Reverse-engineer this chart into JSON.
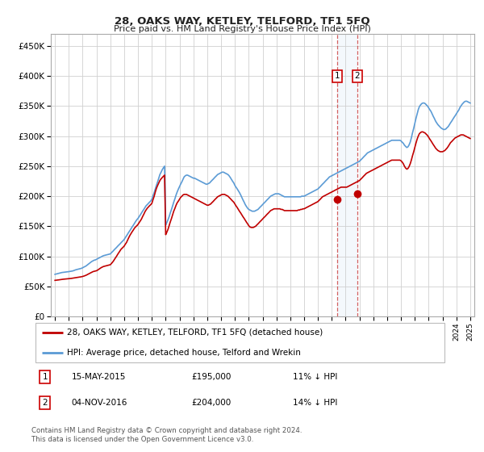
{
  "title": "28, OAKS WAY, KETLEY, TELFORD, TF1 5FQ",
  "subtitle": "Price paid vs. HM Land Registry's House Price Index (HPI)",
  "ylabel_ticks": [
    "£0",
    "£50K",
    "£100K",
    "£150K",
    "£200K",
    "£250K",
    "£300K",
    "£350K",
    "£400K",
    "£450K"
  ],
  "ytick_values": [
    0,
    50000,
    100000,
    150000,
    200000,
    250000,
    300000,
    350000,
    400000,
    450000
  ],
  "ylim": [
    0,
    470000
  ],
  "xlim_start": 1994.7,
  "xlim_end": 2025.3,
  "hpi_color": "#5b9bd5",
  "price_color": "#c00000",
  "bg_color": "#ffffff",
  "grid_color": "#d0d0d0",
  "legend_label_red": "28, OAKS WAY, KETLEY, TELFORD, TF1 5FQ (detached house)",
  "legend_label_blue": "HPI: Average price, detached house, Telford and Wrekin",
  "transaction1_date": "15-MAY-2015",
  "transaction1_price": "£195,000",
  "transaction1_hpi": "11% ↓ HPI",
  "transaction1_year": 2015.37,
  "transaction1_value": 195000,
  "transaction2_date": "04-NOV-2016",
  "transaction2_price": "£204,000",
  "transaction2_hpi": "14% ↓ HPI",
  "transaction2_year": 2016.84,
  "transaction2_value": 204000,
  "footer": "Contains HM Land Registry data © Crown copyright and database right 2024.\nThis data is licensed under the Open Government Licence v3.0.",
  "hpi_data_years": [
    1995.0,
    1995.08,
    1995.17,
    1995.25,
    1995.33,
    1995.42,
    1995.5,
    1995.58,
    1995.67,
    1995.75,
    1995.83,
    1995.92,
    1996.0,
    1996.08,
    1996.17,
    1996.25,
    1996.33,
    1996.42,
    1996.5,
    1996.58,
    1996.67,
    1996.75,
    1996.83,
    1996.92,
    1997.0,
    1997.08,
    1997.17,
    1997.25,
    1997.33,
    1997.42,
    1997.5,
    1997.58,
    1997.67,
    1997.75,
    1997.83,
    1997.92,
    1998.0,
    1998.08,
    1998.17,
    1998.25,
    1998.33,
    1998.42,
    1998.5,
    1998.58,
    1998.67,
    1998.75,
    1998.83,
    1998.92,
    1999.0,
    1999.08,
    1999.17,
    1999.25,
    1999.33,
    1999.42,
    1999.5,
    1999.58,
    1999.67,
    1999.75,
    1999.83,
    1999.92,
    2000.0,
    2000.08,
    2000.17,
    2000.25,
    2000.33,
    2000.42,
    2000.5,
    2000.58,
    2000.67,
    2000.75,
    2000.83,
    2000.92,
    2001.0,
    2001.08,
    2001.17,
    2001.25,
    2001.33,
    2001.42,
    2001.5,
    2001.58,
    2001.67,
    2001.75,
    2001.83,
    2001.92,
    2002.0,
    2002.08,
    2002.17,
    2002.25,
    2002.33,
    2002.42,
    2002.5,
    2002.58,
    2002.67,
    2002.75,
    2002.83,
    2002.92,
    2003.0,
    2003.08,
    2003.17,
    2003.25,
    2003.33,
    2003.42,
    2003.5,
    2003.58,
    2003.67,
    2003.75,
    2003.83,
    2003.92,
    2004.0,
    2004.08,
    2004.17,
    2004.25,
    2004.33,
    2004.42,
    2004.5,
    2004.58,
    2004.67,
    2004.75,
    2004.83,
    2004.92,
    2005.0,
    2005.08,
    2005.17,
    2005.25,
    2005.33,
    2005.42,
    2005.5,
    2005.58,
    2005.67,
    2005.75,
    2005.83,
    2005.92,
    2006.0,
    2006.08,
    2006.17,
    2006.25,
    2006.33,
    2006.42,
    2006.5,
    2006.58,
    2006.67,
    2006.75,
    2006.83,
    2006.92,
    2007.0,
    2007.08,
    2007.17,
    2007.25,
    2007.33,
    2007.42,
    2007.5,
    2007.58,
    2007.67,
    2007.75,
    2007.83,
    2007.92,
    2008.0,
    2008.08,
    2008.17,
    2008.25,
    2008.33,
    2008.42,
    2008.5,
    2008.58,
    2008.67,
    2008.75,
    2008.83,
    2008.92,
    2009.0,
    2009.08,
    2009.17,
    2009.25,
    2009.33,
    2009.42,
    2009.5,
    2009.58,
    2009.67,
    2009.75,
    2009.83,
    2009.92,
    2010.0,
    2010.08,
    2010.17,
    2010.25,
    2010.33,
    2010.42,
    2010.5,
    2010.58,
    2010.67,
    2010.75,
    2010.83,
    2010.92,
    2011.0,
    2011.08,
    2011.17,
    2011.25,
    2011.33,
    2011.42,
    2011.5,
    2011.58,
    2011.67,
    2011.75,
    2011.83,
    2011.92,
    2012.0,
    2012.08,
    2012.17,
    2012.25,
    2012.33,
    2012.42,
    2012.5,
    2012.58,
    2012.67,
    2012.75,
    2012.83,
    2012.92,
    2013.0,
    2013.08,
    2013.17,
    2013.25,
    2013.33,
    2013.42,
    2013.5,
    2013.58,
    2013.67,
    2013.75,
    2013.83,
    2013.92,
    2014.0,
    2014.08,
    2014.17,
    2014.25,
    2014.33,
    2014.42,
    2014.5,
    2014.58,
    2014.67,
    2014.75,
    2014.83,
    2014.92,
    2015.0,
    2015.08,
    2015.17,
    2015.25,
    2015.33,
    2015.42,
    2015.5,
    2015.58,
    2015.67,
    2015.75,
    2015.83,
    2015.92,
    2016.0,
    2016.08,
    2016.17,
    2016.25,
    2016.33,
    2016.42,
    2016.5,
    2016.58,
    2016.67,
    2016.75,
    2016.83,
    2016.92,
    2017.0,
    2017.08,
    2017.17,
    2017.25,
    2017.33,
    2017.42,
    2017.5,
    2017.58,
    2017.67,
    2017.75,
    2017.83,
    2017.92,
    2018.0,
    2018.08,
    2018.17,
    2018.25,
    2018.33,
    2018.42,
    2018.5,
    2018.58,
    2018.67,
    2018.75,
    2018.83,
    2018.92,
    2019.0,
    2019.08,
    2019.17,
    2019.25,
    2019.33,
    2019.42,
    2019.5,
    2019.58,
    2019.67,
    2019.75,
    2019.83,
    2019.92,
    2020.0,
    2020.08,
    2020.17,
    2020.25,
    2020.33,
    2020.42,
    2020.5,
    2020.58,
    2020.67,
    2020.75,
    2020.83,
    2020.92,
    2021.0,
    2021.08,
    2021.17,
    2021.25,
    2021.33,
    2021.42,
    2021.5,
    2021.58,
    2021.67,
    2021.75,
    2021.83,
    2021.92,
    2022.0,
    2022.08,
    2022.17,
    2022.25,
    2022.33,
    2022.42,
    2022.5,
    2022.58,
    2022.67,
    2022.75,
    2022.83,
    2022.92,
    2023.0,
    2023.08,
    2023.17,
    2023.25,
    2023.33,
    2023.42,
    2023.5,
    2023.58,
    2023.67,
    2023.75,
    2023.83,
    2023.92,
    2024.0,
    2024.08,
    2024.17,
    2024.25,
    2024.33,
    2024.42,
    2024.5,
    2024.58,
    2024.67,
    2024.75,
    2024.83,
    2024.92,
    2025.0
  ],
  "hpi_data_values": [
    70000,
    70500,
    71000,
    71500,
    72000,
    72500,
    73000,
    73200,
    73500,
    73800,
    74000,
    74200,
    74500,
    74800,
    75000,
    75500,
    76000,
    76800,
    77500,
    78000,
    78500,
    79000,
    79500,
    80000,
    81000,
    82000,
    83000,
    84000,
    85500,
    87000,
    88500,
    90000,
    91500,
    92500,
    93500,
    94000,
    95000,
    96000,
    97000,
    98000,
    99000,
    100000,
    101000,
    101500,
    102000,
    102500,
    103000,
    103500,
    104000,
    106000,
    108000,
    110000,
    112000,
    114000,
    116000,
    118000,
    120000,
    122000,
    124000,
    126000,
    128000,
    131000,
    134000,
    137000,
    140000,
    143000,
    146000,
    149000,
    152000,
    155000,
    158000,
    161000,
    163000,
    166000,
    169000,
    172000,
    175000,
    178000,
    181000,
    184000,
    186000,
    188000,
    190000,
    192000,
    195000,
    200000,
    206000,
    212000,
    218000,
    224000,
    230000,
    236000,
    240000,
    244000,
    247000,
    250000,
    152000,
    156000,
    161000,
    166000,
    172000,
    178000,
    184000,
    190000,
    196000,
    202000,
    207000,
    212000,
    216000,
    220000,
    224000,
    228000,
    232000,
    234000,
    235000,
    235000,
    234000,
    233000,
    232000,
    231000,
    230000,
    230000,
    229000,
    228000,
    227000,
    226000,
    225000,
    224000,
    223000,
    222000,
    221000,
    220000,
    220000,
    221000,
    222000,
    224000,
    226000,
    228000,
    230000,
    232000,
    234000,
    236000,
    237000,
    238000,
    239000,
    240000,
    240000,
    239000,
    238000,
    237000,
    236000,
    234000,
    231000,
    228000,
    225000,
    222000,
    218000,
    215000,
    212000,
    209000,
    206000,
    202000,
    198000,
    194000,
    190000,
    186000,
    183000,
    180000,
    178000,
    177000,
    176000,
    175000,
    175000,
    175000,
    176000,
    177000,
    178000,
    180000,
    182000,
    184000,
    186000,
    188000,
    190000,
    192000,
    194000,
    196000,
    198000,
    200000,
    201000,
    202000,
    203000,
    204000,
    204000,
    204000,
    204000,
    203000,
    202000,
    201000,
    200000,
    199000,
    199000,
    199000,
    199000,
    199000,
    199000,
    199000,
    199000,
    199000,
    199000,
    199000,
    199000,
    199000,
    199000,
    199000,
    200000,
    200000,
    200000,
    201000,
    202000,
    203000,
    204000,
    205000,
    206000,
    207000,
    208000,
    209000,
    210000,
    211000,
    212000,
    214000,
    216000,
    218000,
    220000,
    222000,
    224000,
    226000,
    228000,
    230000,
    232000,
    233000,
    234000,
    235000,
    236000,
    237000,
    238000,
    239000,
    240000,
    241000,
    242000,
    243000,
    244000,
    245000,
    246000,
    247000,
    248000,
    249000,
    250000,
    251000,
    252000,
    253000,
    254000,
    255000,
    256000,
    257000,
    258000,
    260000,
    262000,
    264000,
    266000,
    268000,
    270000,
    272000,
    273000,
    274000,
    275000,
    276000,
    277000,
    278000,
    279000,
    280000,
    281000,
    282000,
    283000,
    284000,
    285000,
    286000,
    287000,
    288000,
    289000,
    290000,
    291000,
    292000,
    293000,
    293000,
    293000,
    293000,
    293000,
    293000,
    293000,
    293000,
    292000,
    290000,
    288000,
    285000,
    283000,
    281000,
    282000,
    285000,
    290000,
    297000,
    305000,
    313000,
    321000,
    329000,
    337000,
    344000,
    349000,
    352000,
    354000,
    355000,
    355000,
    354000,
    352000,
    350000,
    347000,
    344000,
    341000,
    337000,
    333000,
    329000,
    325000,
    322000,
    319000,
    317000,
    315000,
    313000,
    312000,
    311000,
    311000,
    312000,
    314000,
    316000,
    319000,
    322000,
    325000,
    328000,
    331000,
    334000,
    337000,
    340000,
    343000,
    347000,
    350000,
    353000,
    355000,
    357000,
    358000,
    358000,
    357000,
    356000,
    355000
  ],
  "price_data_years": [
    1995.0,
    1995.08,
    1995.17,
    1995.25,
    1995.33,
    1995.42,
    1995.5,
    1995.58,
    1995.67,
    1995.75,
    1995.83,
    1995.92,
    1996.0,
    1996.08,
    1996.17,
    1996.25,
    1996.33,
    1996.42,
    1996.5,
    1996.58,
    1996.67,
    1996.75,
    1996.83,
    1996.92,
    1997.0,
    1997.08,
    1997.17,
    1997.25,
    1997.33,
    1997.42,
    1997.5,
    1997.58,
    1997.67,
    1997.75,
    1997.83,
    1997.92,
    1998.0,
    1998.08,
    1998.17,
    1998.25,
    1998.33,
    1998.42,
    1998.5,
    1998.58,
    1998.67,
    1998.75,
    1998.83,
    1998.92,
    1999.0,
    1999.08,
    1999.17,
    1999.25,
    1999.33,
    1999.42,
    1999.5,
    1999.58,
    1999.67,
    1999.75,
    1999.83,
    1999.92,
    2000.0,
    2000.08,
    2000.17,
    2000.25,
    2000.33,
    2000.42,
    2000.5,
    2000.58,
    2000.67,
    2000.75,
    2000.83,
    2000.92,
    2001.0,
    2001.08,
    2001.17,
    2001.25,
    2001.33,
    2001.42,
    2001.5,
    2001.58,
    2001.67,
    2001.75,
    2001.83,
    2001.92,
    2002.0,
    2002.08,
    2002.17,
    2002.25,
    2002.33,
    2002.42,
    2002.5,
    2002.58,
    2002.67,
    2002.75,
    2002.83,
    2002.92,
    2003.0,
    2003.08,
    2003.17,
    2003.25,
    2003.33,
    2003.42,
    2003.5,
    2003.58,
    2003.67,
    2003.75,
    2003.83,
    2003.92,
    2004.0,
    2004.08,
    2004.17,
    2004.25,
    2004.33,
    2004.42,
    2004.5,
    2004.58,
    2004.67,
    2004.75,
    2004.83,
    2004.92,
    2005.0,
    2005.08,
    2005.17,
    2005.25,
    2005.33,
    2005.42,
    2005.5,
    2005.58,
    2005.67,
    2005.75,
    2005.83,
    2005.92,
    2006.0,
    2006.08,
    2006.17,
    2006.25,
    2006.33,
    2006.42,
    2006.5,
    2006.58,
    2006.67,
    2006.75,
    2006.83,
    2006.92,
    2007.0,
    2007.08,
    2007.17,
    2007.25,
    2007.33,
    2007.42,
    2007.5,
    2007.58,
    2007.67,
    2007.75,
    2007.83,
    2007.92,
    2008.0,
    2008.08,
    2008.17,
    2008.25,
    2008.33,
    2008.42,
    2008.5,
    2008.58,
    2008.67,
    2008.75,
    2008.83,
    2008.92,
    2009.0,
    2009.08,
    2009.17,
    2009.25,
    2009.33,
    2009.42,
    2009.5,
    2009.58,
    2009.67,
    2009.75,
    2009.83,
    2009.92,
    2010.0,
    2010.08,
    2010.17,
    2010.25,
    2010.33,
    2010.42,
    2010.5,
    2010.58,
    2010.67,
    2010.75,
    2010.83,
    2010.92,
    2011.0,
    2011.08,
    2011.17,
    2011.25,
    2011.33,
    2011.42,
    2011.5,
    2011.58,
    2011.67,
    2011.75,
    2011.83,
    2011.92,
    2012.0,
    2012.08,
    2012.17,
    2012.25,
    2012.33,
    2012.42,
    2012.5,
    2012.58,
    2012.67,
    2012.75,
    2012.83,
    2012.92,
    2013.0,
    2013.08,
    2013.17,
    2013.25,
    2013.33,
    2013.42,
    2013.5,
    2013.58,
    2013.67,
    2013.75,
    2013.83,
    2013.92,
    2014.0,
    2014.08,
    2014.17,
    2014.25,
    2014.33,
    2014.42,
    2014.5,
    2014.58,
    2014.67,
    2014.75,
    2014.83,
    2014.92,
    2015.0,
    2015.08,
    2015.17,
    2015.25,
    2015.33,
    2015.42,
    2015.5,
    2015.58,
    2015.67,
    2015.75,
    2015.83,
    2015.92,
    2016.0,
    2016.08,
    2016.17,
    2016.25,
    2016.33,
    2016.42,
    2016.5,
    2016.58,
    2016.67,
    2016.75,
    2016.83,
    2016.92,
    2017.0,
    2017.08,
    2017.17,
    2017.25,
    2017.33,
    2017.42,
    2017.5,
    2017.58,
    2017.67,
    2017.75,
    2017.83,
    2017.92,
    2018.0,
    2018.08,
    2018.17,
    2018.25,
    2018.33,
    2018.42,
    2018.5,
    2018.58,
    2018.67,
    2018.75,
    2018.83,
    2018.92,
    2019.0,
    2019.08,
    2019.17,
    2019.25,
    2019.33,
    2019.42,
    2019.5,
    2019.58,
    2019.67,
    2019.75,
    2019.83,
    2019.92,
    2020.0,
    2020.08,
    2020.17,
    2020.25,
    2020.33,
    2020.42,
    2020.5,
    2020.58,
    2020.67,
    2020.75,
    2020.83,
    2020.92,
    2021.0,
    2021.08,
    2021.17,
    2021.25,
    2021.33,
    2021.42,
    2021.5,
    2021.58,
    2021.67,
    2021.75,
    2021.83,
    2021.92,
    2022.0,
    2022.08,
    2022.17,
    2022.25,
    2022.33,
    2022.42,
    2022.5,
    2022.58,
    2022.67,
    2022.75,
    2022.83,
    2022.92,
    2023.0,
    2023.08,
    2023.17,
    2023.25,
    2023.33,
    2023.42,
    2023.5,
    2023.58,
    2023.67,
    2023.75,
    2023.83,
    2023.92,
    2024.0,
    2024.08,
    2024.17,
    2024.25,
    2024.33,
    2024.42,
    2024.5,
    2024.58,
    2024.67,
    2024.75,
    2024.83,
    2024.92,
    2025.0
  ],
  "price_data_values": [
    60000,
    60200,
    60400,
    60700,
    61000,
    61300,
    61500,
    61800,
    62000,
    62200,
    62400,
    62600,
    62800,
    63000,
    63200,
    63500,
    63800,
    64100,
    64400,
    64700,
    65000,
    65300,
    65600,
    66000,
    66500,
    67000,
    67800,
    68500,
    69500,
    70500,
    71500,
    72500,
    73500,
    74500,
    75000,
    75500,
    76000,
    77000,
    78500,
    80000,
    81000,
    82000,
    83000,
    83500,
    84000,
    84500,
    85000,
    85500,
    86000,
    88000,
    90500,
    93000,
    96000,
    99000,
    102000,
    105000,
    108000,
    111000,
    113000,
    115000,
    117000,
    120000,
    123000,
    127000,
    131000,
    135000,
    138000,
    141000,
    144000,
    147000,
    149000,
    151000,
    153000,
    156000,
    159000,
    162000,
    166000,
    170000,
    174000,
    177000,
    180000,
    182000,
    184000,
    186000,
    188000,
    194000,
    200000,
    207000,
    213000,
    218000,
    222000,
    226000,
    229000,
    231000,
    233000,
    235000,
    136000,
    140000,
    145000,
    151000,
    157000,
    163000,
    169000,
    175000,
    180000,
    185000,
    189000,
    192000,
    195000,
    198000,
    200000,
    202000,
    203000,
    203000,
    203000,
    202000,
    201000,
    200000,
    199000,
    198000,
    197000,
    196000,
    195000,
    194000,
    193000,
    192000,
    191000,
    190000,
    189000,
    188000,
    187000,
    186000,
    185000,
    185000,
    186000,
    187000,
    189000,
    191000,
    193000,
    195000,
    197000,
    199000,
    200000,
    201000,
    202000,
    203000,
    203000,
    203000,
    202000,
    201000,
    200000,
    198000,
    196000,
    194000,
    192000,
    190000,
    187000,
    184000,
    181000,
    178000,
    175000,
    172000,
    169000,
    166000,
    163000,
    160000,
    157000,
    154000,
    151000,
    149000,
    148000,
    148000,
    148000,
    149000,
    150000,
    152000,
    154000,
    156000,
    158000,
    160000,
    162000,
    164000,
    166000,
    168000,
    170000,
    172000,
    174000,
    176000,
    177000,
    178000,
    179000,
    179000,
    179000,
    179000,
    179000,
    179000,
    178000,
    178000,
    177000,
    176000,
    176000,
    176000,
    176000,
    176000,
    176000,
    176000,
    176000,
    176000,
    176000,
    176000,
    176000,
    177000,
    177000,
    178000,
    178000,
    179000,
    179000,
    180000,
    181000,
    182000,
    183000,
    184000,
    185000,
    186000,
    187000,
    188000,
    189000,
    190000,
    191000,
    193000,
    195000,
    197000,
    199000,
    200000,
    201000,
    202000,
    203000,
    204000,
    205000,
    206000,
    207000,
    208000,
    209000,
    210000,
    211000,
    212000,
    213000,
    214000,
    215000,
    215000,
    215000,
    215000,
    215000,
    215000,
    216000,
    217000,
    218000,
    219000,
    220000,
    221000,
    222000,
    223000,
    224000,
    225000,
    226000,
    228000,
    230000,
    232000,
    234000,
    236000,
    238000,
    239000,
    240000,
    241000,
    242000,
    243000,
    244000,
    245000,
    246000,
    247000,
    248000,
    249000,
    250000,
    251000,
    252000,
    253000,
    254000,
    255000,
    256000,
    257000,
    258000,
    259000,
    260000,
    260000,
    260000,
    260000,
    260000,
    260000,
    260000,
    260000,
    259000,
    257000,
    254000,
    250000,
    247000,
    245000,
    246000,
    249000,
    254000,
    260000,
    267000,
    274000,
    281000,
    288000,
    295000,
    300000,
    304000,
    306000,
    307000,
    307000,
    306000,
    305000,
    303000,
    301000,
    298000,
    295000,
    292000,
    289000,
    286000,
    283000,
    280000,
    278000,
    276000,
    275000,
    274000,
    274000,
    274000,
    275000,
    276000,
    278000,
    280000,
    283000,
    286000,
    289000,
    291000,
    293000,
    295000,
    297000,
    298000,
    299000,
    300000,
    301000,
    302000,
    302000,
    302000,
    301000,
    300000,
    299000,
    298000,
    297000,
    296000
  ]
}
